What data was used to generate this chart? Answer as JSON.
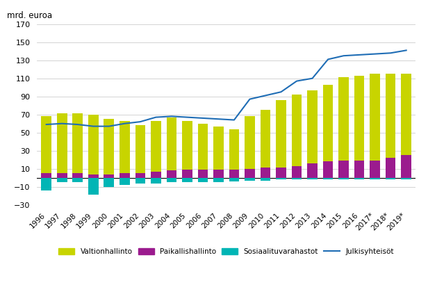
{
  "years": [
    "1996",
    "1997",
    "1998",
    "1999",
    "2000",
    "2001",
    "2002",
    "2003",
    "2004",
    "2005",
    "2006",
    "2007",
    "2008",
    "2009",
    "2010",
    "2011",
    "2012",
    "2013",
    "2014",
    "2015",
    "2016",
    "2017*",
    "2018*",
    "2019*"
  ],
  "valtionhallinto": [
    68,
    71,
    71,
    70,
    65,
    63,
    58,
    63,
    67,
    63,
    60,
    57,
    54,
    68,
    75,
    86,
    92,
    97,
    103,
    111,
    113,
    115,
    115,
    115
  ],
  "paikallishallinto": [
    5,
    5,
    5,
    4,
    4,
    5,
    5,
    7,
    8,
    9,
    9,
    9,
    9,
    10,
    11,
    11,
    13,
    16,
    18,
    19,
    19,
    19,
    22,
    25
  ],
  "sosiaalituvarahastot": [
    -14,
    -5,
    -5,
    -19,
    -10,
    -8,
    -6,
    -6,
    -5,
    -5,
    -5,
    -5,
    -4,
    -3,
    -3,
    -2,
    -2,
    -2,
    -2,
    -2,
    -2,
    -2,
    -2,
    -2
  ],
  "julkisyhteisot": [
    59,
    60,
    59,
    57,
    57,
    60,
    62,
    67,
    68,
    67,
    66,
    65,
    64,
    87,
    91,
    95,
    107,
    110,
    131,
    135,
    136,
    137,
    138,
    141
  ],
  "bar_color_valt": "#c8d400",
  "bar_color_paik": "#9b1b8e",
  "bar_color_sosi": "#00b5b5",
  "line_color": "#1f6db5",
  "ylabel": "mrd. euroa",
  "ylim": [
    -30,
    170
  ],
  "yticks": [
    -30,
    -10,
    10,
    30,
    50,
    70,
    90,
    110,
    130,
    150,
    170
  ],
  "legend_labels": [
    "Valtionhallinto",
    "Paikallishallinto",
    "Sosiaalituvarahastot",
    "Julkisyhteisöt"
  ],
  "background_color": "#ffffff",
  "grid_color": "#cccccc"
}
